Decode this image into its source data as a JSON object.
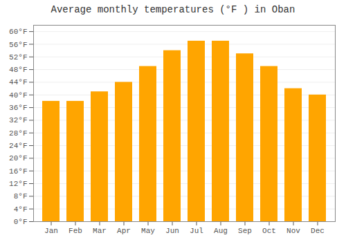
{
  "chart_data": {
    "type": "bar",
    "title": "Average monthly temperatures (°F ) in Oban",
    "categories": [
      "Jan",
      "Feb",
      "Mar",
      "Apr",
      "May",
      "Jun",
      "Jul",
      "Aug",
      "Sep",
      "Oct",
      "Nov",
      "Dec"
    ],
    "values": [
      38,
      38,
      41,
      44,
      49,
      54,
      57,
      57,
      53,
      49,
      42,
      40
    ],
    "color": "#FFA500",
    "ylim": [
      0,
      62
    ],
    "yticks": [
      {
        "value": 0,
        "label": "0°F"
      },
      {
        "value": 4,
        "label": "4°F"
      },
      {
        "value": 8,
        "label": "8°F"
      },
      {
        "value": 12,
        "label": "12°F"
      },
      {
        "value": 16,
        "label": "16°F"
      },
      {
        "value": 20,
        "label": "20°F"
      },
      {
        "value": 24,
        "label": "24°F"
      },
      {
        "value": 28,
        "label": "28°F"
      },
      {
        "value": 32,
        "label": "32°F"
      },
      {
        "value": 36,
        "label": "36°F"
      },
      {
        "value": 40,
        "label": "40°F"
      },
      {
        "value": 44,
        "label": "44°F"
      },
      {
        "value": 48,
        "label": "48°F"
      },
      {
        "value": 52,
        "label": "52°F"
      },
      {
        "value": 56,
        "label": "56°F"
      },
      {
        "value": 60,
        "label": "60°F"
      }
    ],
    "grid": true
  }
}
